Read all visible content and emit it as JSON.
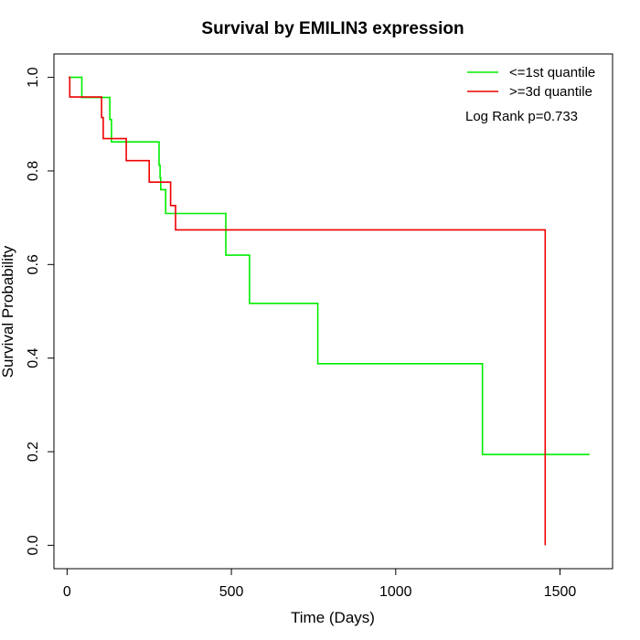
{
  "chart_data": {
    "type": "line",
    "title": "Survival by EMILIN3 expression",
    "xlabel": "Time (Days)",
    "ylabel": "Survival Probability",
    "xlim": [
      -40,
      1660
    ],
    "ylim": [
      -0.05,
      1.05
    ],
    "x_ticks": [
      0,
      500,
      1000,
      1500
    ],
    "y_ticks": [
      0.0,
      0.2,
      0.4,
      0.6,
      0.8,
      1.0
    ],
    "x_tick_labels": [
      "0",
      "500",
      "1000",
      "1500"
    ],
    "y_tick_labels": [
      "0.0",
      "0.2",
      "0.4",
      "0.6",
      "0.8",
      "1.0"
    ],
    "legend_position": "top-right",
    "annotation": "Log Rank p=0.733",
    "series": [
      {
        "name": "<=1st quantile",
        "color": "#00ee00",
        "x": [
          5,
          45,
          45,
          130,
          130,
          135,
          135,
          280,
          280,
          283,
          283,
          285,
          285,
          300,
          300,
          483,
          483,
          555,
          555,
          763,
          763,
          1264,
          1264,
          1590
        ],
        "y": [
          1.0,
          1.0,
          0.957,
          0.957,
          0.91,
          0.91,
          0.862,
          0.862,
          0.812,
          0.812,
          0.785,
          0.785,
          0.76,
          0.76,
          0.709,
          0.709,
          0.62,
          0.62,
          0.517,
          0.517,
          0.388,
          0.388,
          0.194,
          0.194
        ]
      },
      {
        "name": ">=3d quantile",
        "color": "#ee0000",
        "x": [
          5,
          8,
          8,
          105,
          105,
          110,
          110,
          180,
          180,
          250,
          250,
          315,
          315,
          330,
          330,
          1455,
          1455
        ],
        "y": [
          1.0,
          1.0,
          0.958,
          0.958,
          0.914,
          0.914,
          0.869,
          0.869,
          0.822,
          0.822,
          0.776,
          0.776,
          0.726,
          0.726,
          0.674,
          0.674,
          0.0
        ]
      }
    ]
  }
}
